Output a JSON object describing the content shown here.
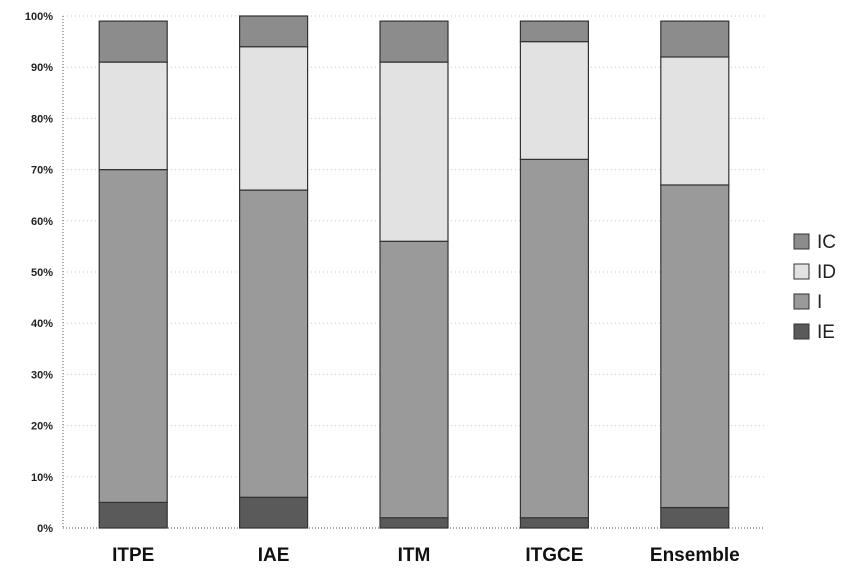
{
  "chart_data": {
    "type": "bar",
    "stacked": true,
    "percent": true,
    "categories": [
      "ITPE",
      "IAE",
      "ITM",
      "ITGCE",
      "Ensemble"
    ],
    "series": [
      {
        "name": "IE",
        "values": [
          5,
          6,
          2,
          2,
          4
        ],
        "color": "#5a5a5a"
      },
      {
        "name": "I",
        "values": [
          65,
          60,
          54,
          70,
          63
        ],
        "color": "#9a9a9a"
      },
      {
        "name": "ID",
        "values": [
          21,
          28,
          35,
          23,
          25
        ],
        "color": "#e2e2e2"
      },
      {
        "name": "IC",
        "values": [
          8,
          6,
          8,
          4,
          7
        ],
        "color": "#8c8c8c"
      }
    ],
    "ylim": [
      0,
      100
    ],
    "yticks": [
      "0%",
      "10%",
      "20%",
      "30%",
      "40%",
      "50%",
      "60%",
      "70%",
      "80%",
      "90%",
      "100%"
    ],
    "grid": true,
    "legend": {
      "placement": "right",
      "entries": [
        "IC",
        "ID",
        "I",
        "IE"
      ]
    }
  }
}
